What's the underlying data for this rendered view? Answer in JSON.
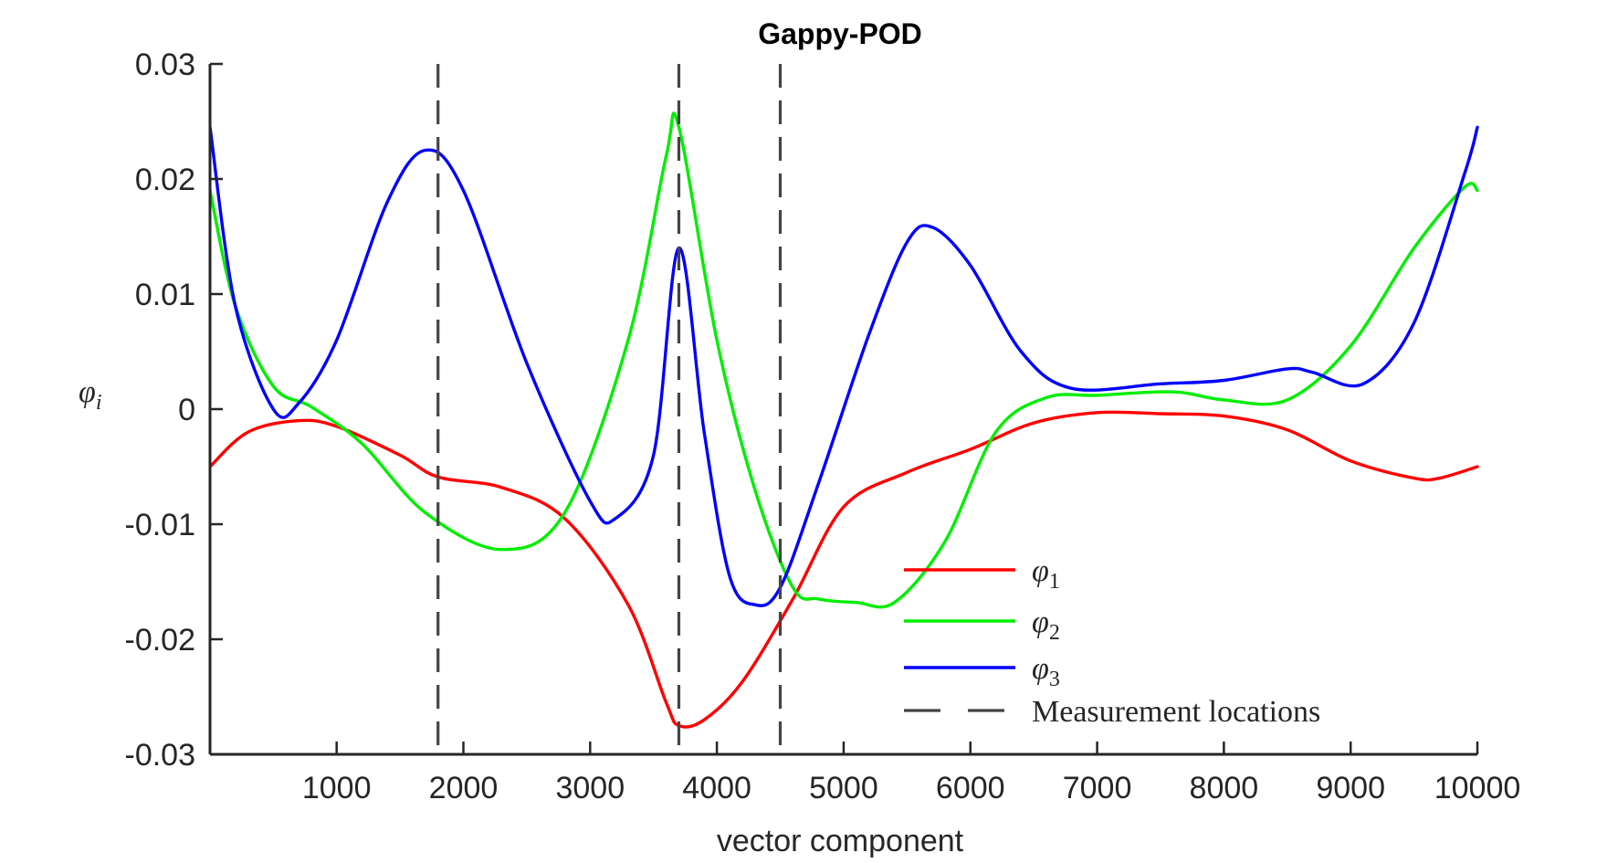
{
  "chart_data": {
    "type": "line",
    "title": "Gappy-POD",
    "xlabel": "vector component",
    "ylabel": "φ",
    "ylabel_sub": "i",
    "xlim": [
      1,
      10000
    ],
    "ylim": [
      -0.03,
      0.03
    ],
    "xticks": [
      1000,
      2000,
      3000,
      4000,
      5000,
      6000,
      7000,
      8000,
      9000,
      10000
    ],
    "xtick_labels": [
      "1000",
      "2000",
      "3000",
      "4000",
      "5000",
      "6000",
      "7000",
      "8000",
      "9000",
      "10000"
    ],
    "yticks": [
      -0.03,
      -0.02,
      -0.01,
      0,
      0.01,
      0.02,
      0.03
    ],
    "ytick_labels": [
      "-0.03",
      "-0.02",
      "-0.01",
      "0",
      "0.01",
      "0.02",
      "0.03"
    ],
    "grid": false,
    "legend_position": "bottom-right",
    "series": [
      {
        "name": "φ",
        "sub": "1",
        "color": "#ff0000",
        "x": [
          1,
          300,
          700,
          1000,
          1500,
          1800,
          2300,
          2800,
          3300,
          3600,
          3700,
          3900,
          4200,
          4600,
          5000,
          5500,
          6000,
          6500,
          7000,
          7500,
          8000,
          8500,
          9000,
          9500,
          9700,
          10000
        ],
        "y": [
          -0.005,
          -0.002,
          -0.001,
          -0.0015,
          -0.004,
          -0.0059,
          -0.0068,
          -0.0095,
          -0.017,
          -0.0255,
          -0.0275,
          -0.027,
          -0.0237,
          -0.0165,
          -0.0085,
          -0.0055,
          -0.0035,
          -0.0012,
          -0.0003,
          -0.0004,
          -0.0006,
          -0.0018,
          -0.0045,
          -0.006,
          -0.006,
          -0.005
        ]
      },
      {
        "name": "φ",
        "sub": "2",
        "color": "#00ee00",
        "x": [
          1,
          200,
          500,
          800,
          1200,
          1700,
          2300,
          2800,
          3300,
          3600,
          3700,
          4000,
          4300,
          4600,
          4800,
          5100,
          5400,
          5800,
          6200,
          6600,
          7000,
          7600,
          8000,
          8500,
          9000,
          9500,
          9900,
          10000
        ],
        "y": [
          0.019,
          0.009,
          0.002,
          0.0002,
          -0.003,
          -0.009,
          -0.0122,
          -0.009,
          0.006,
          0.022,
          0.0245,
          0.006,
          -0.007,
          -0.0155,
          -0.0165,
          -0.0168,
          -0.0168,
          -0.0115,
          -0.002,
          0.001,
          0.0012,
          0.0015,
          0.0008,
          0.0008,
          0.0055,
          0.014,
          0.0193,
          0.019
        ]
      },
      {
        "name": "φ",
        "sub": "3",
        "color": "#0000ff",
        "x": [
          1,
          200,
          500,
          700,
          1000,
          1400,
          1700,
          2000,
          2500,
          3000,
          3200,
          3500,
          3700,
          3900,
          4100,
          4300,
          4500,
          4800,
          5200,
          5500,
          5700,
          6000,
          6400,
          6800,
          7500,
          8000,
          8500,
          8700,
          9100,
          9500,
          9900,
          10000
        ],
        "y": [
          0.0245,
          0.009,
          0.0,
          0.0005,
          0.006,
          0.018,
          0.0225,
          0.019,
          0.004,
          -0.008,
          -0.0095,
          -0.004,
          0.014,
          -0.002,
          -0.0145,
          -0.017,
          -0.0155,
          -0.0065,
          0.0065,
          0.0145,
          0.0158,
          0.0125,
          0.005,
          0.0018,
          0.0022,
          0.0025,
          0.0035,
          0.0032,
          0.0022,
          0.0075,
          0.0205,
          0.0245
        ]
      }
    ],
    "vlines": {
      "name": "Measurement locations",
      "color": "#444444",
      "x": [
        1800,
        3700,
        4500
      ]
    }
  }
}
